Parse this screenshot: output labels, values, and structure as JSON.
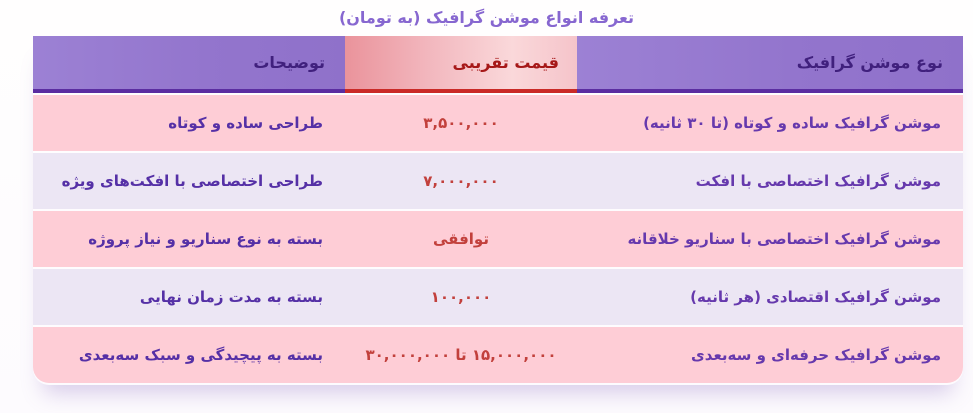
{
  "title": "تعرفه انواع موشن گرافیک (به تومان)",
  "table": {
    "headers": [
      {
        "label": "نوع موشن گرافیک"
      },
      {
        "label": "قیمت تقریبی"
      },
      {
        "label": "توضیحات"
      }
    ],
    "rows": [
      {
        "type": "موشن گرافیک ساده و کوتاه (تا ۳۰ ثانیه)",
        "price": "۳,۵۰۰,۰۰۰",
        "desc": "طراحی ساده و کوتاه"
      },
      {
        "type": "موشن گرافیک اختصاصی با افکت",
        "price": "۷,۰۰۰,۰۰۰",
        "desc": "طراحی اختصاصی با افکت‌های ویژه"
      },
      {
        "type": "موشن گرافیک اختصاصی با سناریو خلاقانه",
        "price": "توافقی",
        "desc": "بسته به نوع سناریو و نیاز پروژه"
      },
      {
        "type": "موشن گرافیک اقتصادی (هر ثانیه)",
        "price": "۱۰۰,۰۰۰",
        "desc": "بسته به مدت زمان نهایی"
      },
      {
        "type": "موشن گرافیک حرفه‌ای و سه‌بعدی",
        "price": "۱۵,۰۰۰,۰۰۰ تا ۳۰,۰۰۰,۰۰۰",
        "desc": "بسته به پیچیدگی و سبک سه‌بعدی"
      }
    ]
  },
  "colors": {
    "title_text": "#8767d0",
    "header_background": "#9377ce",
    "header_text": "#40207d",
    "header_border": "#5b2da1",
    "price_header_background": "#f2b6bd",
    "price_header_text": "#a61818",
    "price_header_border": "#ca2a27",
    "row_pink": "#fecdd6",
    "row_lavender": "#ece6f4",
    "type_text": "#6639ad",
    "description_text": "#5530a6",
    "price_text": "#c2403c"
  }
}
